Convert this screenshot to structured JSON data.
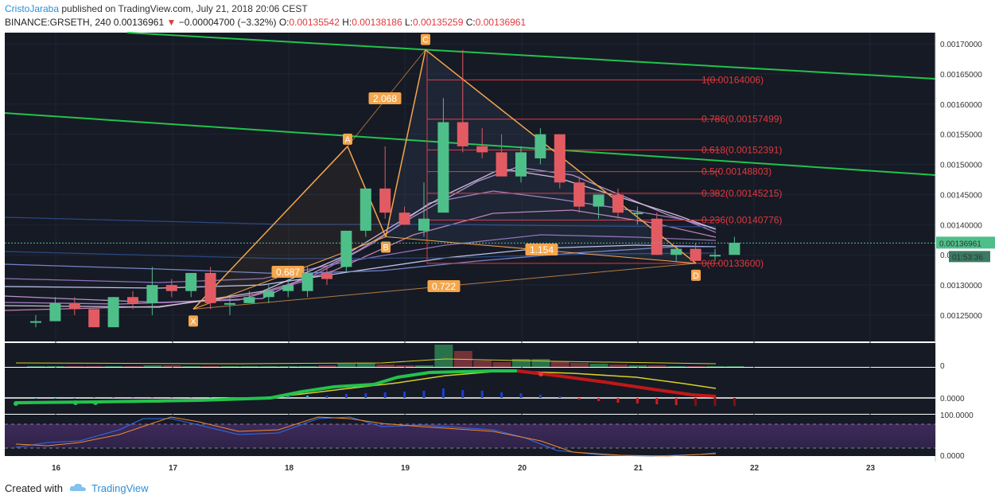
{
  "header": {
    "author": "CristoJaraba",
    "published_text": "published on TradingView.com, July 21, 2018 20:06 CEST",
    "symbol": "BINANCE:GRSETH, 240",
    "last_price": "0.00136961",
    "change": "−0.00004700 (−3.32%)",
    "o_label": "O:",
    "o_value": "0.00135542",
    "h_label": "H:",
    "h_value": "0.00138186",
    "l_label": "L:",
    "l_value": "0.00135259",
    "c_label": "C:",
    "c_value": "0.00136961"
  },
  "price_axis": {
    "ticks": [
      "0.00170000",
      "0.00165000",
      "0.00160000",
      "0.00155000",
      "0.00150000",
      "0.00145000",
      "0.00140000",
      "0.00135000",
      "0.00130000",
      "0.00125000"
    ],
    "current_price": "0.00136961",
    "countdown": "01:53:36"
  },
  "date_axis": {
    "ticks": [
      "16",
      "17",
      "18",
      "19",
      "20",
      "21",
      "22",
      "23"
    ]
  },
  "fib_levels": [
    {
      "ratio": "1",
      "label": "1(0.00164006)",
      "value": 0.00164006
    },
    {
      "ratio": "0.786",
      "label": "0.786(0.00157499)",
      "value": 0.00157499
    },
    {
      "ratio": "0.618",
      "label": "0.618(0.00152391)",
      "value": 0.00152391
    },
    {
      "ratio": "0.5",
      "label": "0.5(0.00148803)",
      "value": 0.00148803
    },
    {
      "ratio": "0.382",
      "label": "0.382(0.00145215)",
      "value": 0.00145215
    },
    {
      "ratio": "0.236",
      "label": "0.236(0.00140776)",
      "value": 0.00140776
    },
    {
      "ratio": "0",
      "label": "0(0.00133600)",
      "value": 0.001336
    }
  ],
  "pattern": {
    "points": [
      "X",
      "A",
      "B",
      "C",
      "D"
    ],
    "ratios": [
      "2.068",
      "0.687",
      "1.154",
      "0.722"
    ]
  },
  "indicators": {
    "macd_zero": "0",
    "histogram_zero": "0.0000",
    "stoch_top": "100.0000",
    "stoch_bottom": "0.0000"
  },
  "footer": {
    "created_with": "Created with",
    "brand": "TradingView"
  },
  "colors": {
    "up": "#4fbf8a",
    "down": "#e25b63",
    "background": "#161a25",
    "trend": "#22c34b",
    "pattern": "#f4a64c",
    "fib": "#e0393e"
  },
  "chart_data": {
    "type": "candlestick",
    "symbol": "BINANCE:GRSETH",
    "interval": "240",
    "y_range": [
      0.00121,
      0.00172
    ],
    "candles": [
      {
        "o": 0.00124,
        "h": 0.00125,
        "l": 0.00123,
        "c": 0.00124
      },
      {
        "o": 0.00124,
        "h": 0.00128,
        "l": 0.00124,
        "c": 0.00127
      },
      {
        "o": 0.00127,
        "h": 0.00128,
        "l": 0.00125,
        "c": 0.00126
      },
      {
        "o": 0.00126,
        "h": 0.00126,
        "l": 0.00123,
        "c": 0.00123
      },
      {
        "o": 0.00123,
        "h": 0.00128,
        "l": 0.00123,
        "c": 0.00128
      },
      {
        "o": 0.00128,
        "h": 0.00129,
        "l": 0.00126,
        "c": 0.00127
      },
      {
        "o": 0.00127,
        "h": 0.00133,
        "l": 0.00125,
        "c": 0.0013
      },
      {
        "o": 0.0013,
        "h": 0.00131,
        "l": 0.00128,
        "c": 0.00129
      },
      {
        "o": 0.00129,
        "h": 0.00132,
        "l": 0.00128,
        "c": 0.00132
      },
      {
        "o": 0.00132,
        "h": 0.00133,
        "l": 0.00126,
        "c": 0.00127
      },
      {
        "o": 0.00127,
        "h": 0.00128,
        "l": 0.00125,
        "c": 0.00127
      },
      {
        "o": 0.00127,
        "h": 0.00129,
        "l": 0.00127,
        "c": 0.00128
      },
      {
        "o": 0.00128,
        "h": 0.0013,
        "l": 0.00127,
        "c": 0.00129
      },
      {
        "o": 0.00129,
        "h": 0.00131,
        "l": 0.00128,
        "c": 0.0013
      },
      {
        "o": 0.00129,
        "h": 0.00133,
        "l": 0.00128,
        "c": 0.00132
      },
      {
        "o": 0.00132,
        "h": 0.00133,
        "l": 0.0013,
        "c": 0.00131
      },
      {
        "o": 0.00133,
        "h": 0.00139,
        "l": 0.00132,
        "c": 0.00139
      },
      {
        "o": 0.00139,
        "h": 0.00146,
        "l": 0.00138,
        "c": 0.00146
      },
      {
        "o": 0.00146,
        "h": 0.00153,
        "l": 0.00141,
        "c": 0.00142
      },
      {
        "o": 0.00142,
        "h": 0.00143,
        "l": 0.0014,
        "c": 0.0014
      },
      {
        "o": 0.00139,
        "h": 0.00147,
        "l": 0.00138,
        "c": 0.00141
      },
      {
        "o": 0.00142,
        "h": 0.00161,
        "l": 0.00142,
        "c": 0.00157
      },
      {
        "o": 0.00157,
        "h": 0.00169,
        "l": 0.00152,
        "c": 0.00153
      },
      {
        "o": 0.00153,
        "h": 0.00156,
        "l": 0.00151,
        "c": 0.00152
      },
      {
        "o": 0.00152,
        "h": 0.00155,
        "l": 0.00148,
        "c": 0.00148
      },
      {
        "o": 0.00148,
        "h": 0.00153,
        "l": 0.00147,
        "c": 0.00152
      },
      {
        "o": 0.00151,
        "h": 0.00156,
        "l": 0.0015,
        "c": 0.00155
      },
      {
        "o": 0.00155,
        "h": 0.00155,
        "l": 0.00146,
        "c": 0.00147
      },
      {
        "o": 0.00147,
        "h": 0.00148,
        "l": 0.00142,
        "c": 0.00143
      },
      {
        "o": 0.00143,
        "h": 0.00145,
        "l": 0.00141,
        "c": 0.00145
      },
      {
        "o": 0.00145,
        "h": 0.00146,
        "l": 0.00141,
        "c": 0.00142
      },
      {
        "o": 0.00142,
        "h": 0.00143,
        "l": 0.0014,
        "c": 0.00142
      },
      {
        "o": 0.00141,
        "h": 0.00142,
        "l": 0.00135,
        "c": 0.00135
      },
      {
        "o": 0.00135,
        "h": 0.00136,
        "l": 0.00134,
        "c": 0.00136
      },
      {
        "o": 0.00136,
        "h": 0.00137,
        "l": 0.00134,
        "c": 0.00134
      },
      {
        "o": 0.00135,
        "h": 0.00136,
        "l": 0.00134,
        "c": 0.00135
      },
      {
        "o": 0.00135,
        "h": 0.00138,
        "l": 0.00135,
        "c": 0.00137
      }
    ],
    "pattern_points": {
      "X": 0.00126,
      "A": 0.00153,
      "B": 0.00138,
      "C": 0.00169,
      "D": 0.001336
    }
  }
}
